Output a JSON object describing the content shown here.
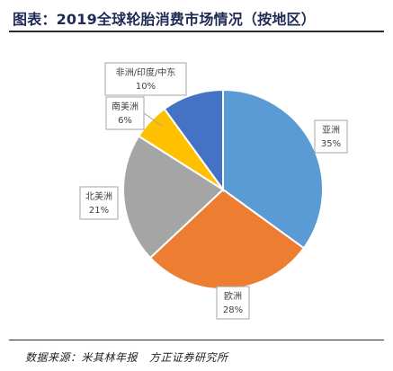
{
  "title": "图表：2019全球轮胎消费市场情况（按地区）",
  "footer": "数据来源：米其林年报   方正证券研究所",
  "chart_data": {
    "type": "pie",
    "title": "图表：2019全球轮胎消费市场情况（按地区）",
    "slices": [
      {
        "label": "亚洲",
        "value": 35,
        "value_label": "35%",
        "color": "#5b9bd5"
      },
      {
        "label": "欧洲",
        "value": 28,
        "value_label": "28%",
        "color": "#ed7d31"
      },
      {
        "label": "北美洲",
        "value": 21,
        "value_label": "21%",
        "color": "#a5a5a5"
      },
      {
        "label": "南美洲",
        "value": 6,
        "value_label": "6%",
        "color": "#ffc000"
      },
      {
        "label": "非洲/印度/中东",
        "value": 10,
        "value_label": "10%",
        "color": "#4472c4"
      }
    ],
    "legend": "none",
    "start": "12 o'clock",
    "direction": "clockwise"
  }
}
